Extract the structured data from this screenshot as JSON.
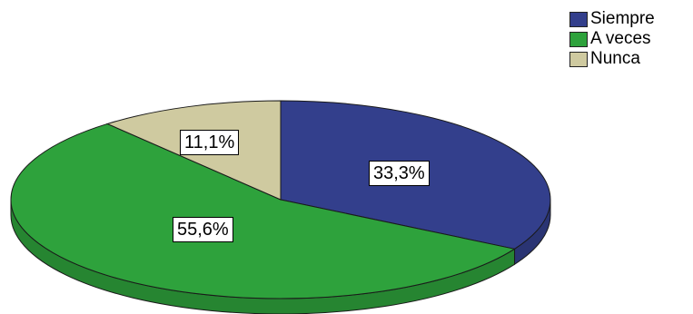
{
  "chart_data": {
    "type": "pie",
    "categories": [
      "Siempre",
      "A veces",
      "Nunca"
    ],
    "values": [
      33.3,
      55.6,
      11.1
    ],
    "labels": [
      "33,3%",
      "55,6%",
      "11,1%"
    ],
    "colors": [
      "#333f8c",
      "#2ea23c",
      "#cfcaa0"
    ],
    "legend_position": "top-right",
    "style": "3d-tilted"
  }
}
